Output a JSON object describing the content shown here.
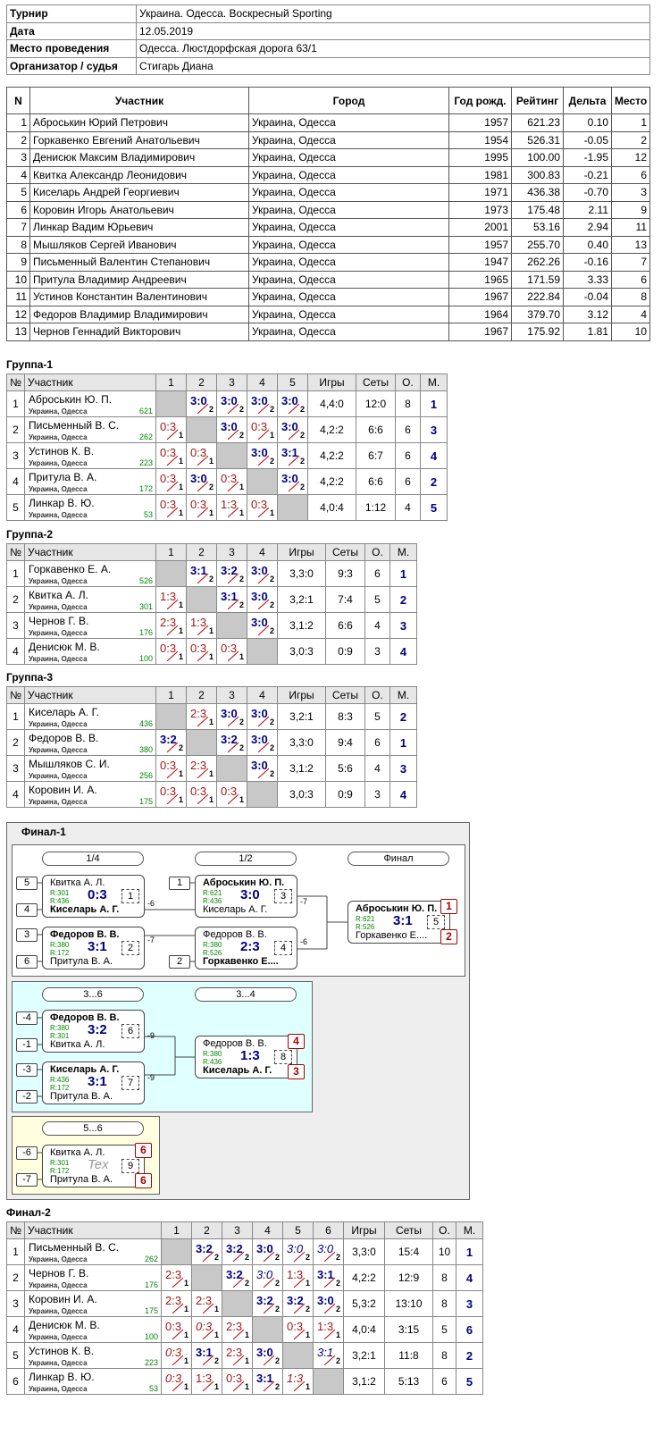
{
  "info": {
    "rows": [
      [
        "Турнир",
        "Украина. Одесса. Воскресный Sporting"
      ],
      [
        "Дата",
        "12.05.2019"
      ],
      [
        "Место проведения",
        "Одесса. Люстдорфская дорога 63/1"
      ],
      [
        "Организатор / судья",
        "Стигарь Диана"
      ]
    ]
  },
  "participants": {
    "headers": [
      "N",
      "Участник",
      "Город",
      "Год рожд.",
      "Рейтинг",
      "Дельта",
      "Место"
    ],
    "rows": [
      [
        "1",
        "Аброськин Юрий Петрович",
        "Украина, Одесса",
        "1957",
        "621.23",
        "0.10",
        "1"
      ],
      [
        "2",
        "Горкавенко Евгений Анатольевич",
        "Украина, Одесса",
        "1954",
        "526.31",
        "-0.05",
        "2"
      ],
      [
        "3",
        "Денисюк Максим Владимирович",
        "Украина, Одесса",
        "1995",
        "100.00",
        "-1.95",
        "12"
      ],
      [
        "4",
        "Квитка Александр Леонидович",
        "Украина, Одесса",
        "1981",
        "300.83",
        "-0.21",
        "6"
      ],
      [
        "5",
        "Киселарь Андрей Георгиевич",
        "Украина, Одесса",
        "1971",
        "436.38",
        "-0.70",
        "3"
      ],
      [
        "6",
        "Коровин Игорь Анатольевич",
        "Украина, Одесса",
        "1973",
        "175.48",
        "2.11",
        "9"
      ],
      [
        "7",
        "Линкар Вадим Юрьевич",
        "Украина, Одесса",
        "2001",
        "53.16",
        "2.94",
        "11"
      ],
      [
        "8",
        "Мышляков Сергей Иванович",
        "Украина, Одесса",
        "1957",
        "255.70",
        "0.40",
        "13"
      ],
      [
        "9",
        "Письменный Валентин Степанович",
        "Украина, Одесса",
        "1947",
        "262.26",
        "-0.16",
        "7"
      ],
      [
        "10",
        "Притула Владимир Андреевич",
        "Украина, Одесса",
        "1965",
        "171.59",
        "3.33",
        "6"
      ],
      [
        "11",
        "Устинов Константин Валентинович",
        "Украина, Одесса",
        "1967",
        "222.84",
        "-0.04",
        "8"
      ],
      [
        "12",
        "Федоров Владимир Владимирович",
        "Украина, Одесса",
        "1964",
        "379.70",
        "3.12",
        "4"
      ],
      [
        "13",
        "Чернов Геннадий Викторович",
        "Украина, Одесса",
        "1967",
        "175.92",
        "1.81",
        "10"
      ]
    ]
  },
  "groups": [
    {
      "title": "Группа-1",
      "headers": [
        "№",
        "Участник",
        "1",
        "2",
        "3",
        "4",
        "5",
        "Игры",
        "Сеты",
        "О.",
        "М."
      ],
      "rows": [
        {
          "no": "1",
          "name": "Аброськин Ю. П.",
          "city": "Украина, Одесса",
          "rating": "621",
          "cells": [
            null,
            {
              "score": "3:0",
              "sub": "2"
            },
            {
              "score": "3:0",
              "sub": "2"
            },
            {
              "score": "3:0",
              "sub": "2"
            },
            {
              "score": "3:0",
              "sub": "2"
            }
          ],
          "games": "4,4:0",
          "sets": "12:0",
          "points": "8",
          "place": "1"
        },
        {
          "no": "2",
          "name": "Письменный В. С.",
          "city": "Украина, Одесса",
          "rating": "262",
          "cells": [
            {
              "score": "0:3",
              "sub": "1"
            },
            null,
            {
              "score": "3:0",
              "sub": "2"
            },
            {
              "score": "0:3",
              "sub": "1"
            },
            {
              "score": "3:0",
              "sub": "2"
            }
          ],
          "games": "4,2:2",
          "sets": "6:6",
          "points": "6",
          "place": "3"
        },
        {
          "no": "3",
          "name": "Устинов К. В.",
          "city": "Украина, Одесса",
          "rating": "223",
          "cells": [
            {
              "score": "0:3",
              "sub": "1"
            },
            {
              "score": "0:3",
              "sub": "1"
            },
            null,
            {
              "score": "3:0",
              "sub": "2"
            },
            {
              "score": "3:1",
              "sub": "2"
            }
          ],
          "games": "4,2:2",
          "sets": "6:7",
          "points": "6",
          "place": "4"
        },
        {
          "no": "4",
          "name": "Притула В. А.",
          "city": "Украина, Одесса",
          "rating": "172",
          "cells": [
            {
              "score": "0:3",
              "sub": "1"
            },
            {
              "score": "3:0",
              "sub": "2"
            },
            {
              "score": "0:3",
              "sub": "1"
            },
            null,
            {
              "score": "3:0",
              "sub": "2"
            }
          ],
          "games": "4,2:2",
          "sets": "6:6",
          "points": "6",
          "place": "2"
        },
        {
          "no": "5",
          "name": "Линкар В. Ю.",
          "city": "Украина, Одесса",
          "rating": "53",
          "cells": [
            {
              "score": "0:3",
              "sub": "1"
            },
            {
              "score": "0:3",
              "sub": "1"
            },
            {
              "score": "1:3",
              "sub": "1"
            },
            {
              "score": "0:3",
              "sub": "1"
            },
            null
          ],
          "games": "4,0:4",
          "sets": "1:12",
          "points": "4",
          "place": "5"
        }
      ]
    },
    {
      "title": "Группа-2",
      "headers": [
        "№",
        "Участник",
        "1",
        "2",
        "3",
        "4",
        "Игры",
        "Сеты",
        "О.",
        "М."
      ],
      "rows": [
        {
          "no": "1",
          "name": "Горкавенко Е. А.",
          "city": "Украина, Одесса",
          "rating": "526",
          "cells": [
            null,
            {
              "score": "3:1",
              "sub": "2"
            },
            {
              "score": "3:2",
              "sub": "2"
            },
            {
              "score": "3:0",
              "sub": "2"
            }
          ],
          "games": "3,3:0",
          "sets": "9:3",
          "points": "6",
          "place": "1"
        },
        {
          "no": "2",
          "name": "Квитка А. Л.",
          "city": "Украина, Одесса",
          "rating": "301",
          "cells": [
            {
              "score": "1:3",
              "sub": "1"
            },
            null,
            {
              "score": "3:1",
              "sub": "2"
            },
            {
              "score": "3:0",
              "sub": "2"
            }
          ],
          "games": "3,2:1",
          "sets": "7:4",
          "points": "5",
          "place": "2"
        },
        {
          "no": "3",
          "name": "Чернов Г. В.",
          "city": "Украина, Одесса",
          "rating": "176",
          "cells": [
            {
              "score": "2:3",
              "sub": "1"
            },
            {
              "score": "1:3",
              "sub": "1"
            },
            null,
            {
              "score": "3:0",
              "sub": "2"
            }
          ],
          "games": "3,1:2",
          "sets": "6:6",
          "points": "4",
          "place": "3"
        },
        {
          "no": "4",
          "name": "Денисюк М. В.",
          "city": "Украина, Одесса",
          "rating": "100",
          "cells": [
            {
              "score": "0:3",
              "sub": "1"
            },
            {
              "score": "0:3",
              "sub": "1"
            },
            {
              "score": "0:3",
              "sub": "1"
            },
            null
          ],
          "games": "3,0:3",
          "sets": "0:9",
          "points": "3",
          "place": "4"
        }
      ]
    },
    {
      "title": "Группа-3",
      "headers": [
        "№",
        "Участник",
        "1",
        "2",
        "3",
        "4",
        "Игры",
        "Сеты",
        "О.",
        "М."
      ],
      "rows": [
        {
          "no": "1",
          "name": "Киселарь А. Г.",
          "city": "Украина, Одесса",
          "rating": "436",
          "cells": [
            null,
            {
              "score": "2:3",
              "sub": "1"
            },
            {
              "score": "3:0",
              "sub": "2"
            },
            {
              "score": "3:0",
              "sub": "2"
            }
          ],
          "games": "3,2:1",
          "sets": "8:3",
          "points": "5",
          "place": "2"
        },
        {
          "no": "2",
          "name": "Федоров В. В.",
          "city": "Украина, Одесса",
          "rating": "380",
          "cells": [
            {
              "score": "3:2",
              "sub": "2"
            },
            null,
            {
              "score": "3:2",
              "sub": "2"
            },
            {
              "score": "3:0",
              "sub": "2"
            }
          ],
          "games": "3,3:0",
          "sets": "9:4",
          "points": "6",
          "place": "1"
        },
        {
          "no": "3",
          "name": "Мышляков С. И.",
          "city": "Украина, Одесса",
          "rating": "256",
          "cells": [
            {
              "score": "0:3",
              "sub": "1"
            },
            {
              "score": "2:3",
              "sub": "1"
            },
            null,
            {
              "score": "3:0",
              "sub": "2"
            }
          ],
          "games": "3,1:2",
          "sets": "5:6",
          "points": "4",
          "place": "3"
        },
        {
          "no": "4",
          "name": "Коровин И. А.",
          "city": "Украина, Одесса",
          "rating": "175",
          "cells": [
            {
              "score": "0:3",
              "sub": "1"
            },
            {
              "score": "0:3",
              "sub": "1"
            },
            {
              "score": "0:3",
              "sub": "1"
            },
            null
          ],
          "games": "3,0:3",
          "sets": "0:9",
          "points": "3",
          "place": "4"
        }
      ]
    }
  ],
  "final1": {
    "title": "Финал-1",
    "stages": [
      "1/4",
      "1/2",
      "Финал",
      "3...6",
      "3...4",
      "5...6"
    ],
    "matches": [
      {
        "seeds": [
          "5",
          "4"
        ],
        "p1": "Квитка А. Л.",
        "r1": "R:301",
        "p2": "Киселарь А. Г.",
        "r2": "R:436",
        "score": "0:3",
        "no": "1",
        "next": "-6",
        "winner": 2
      },
      {
        "seeds": [
          "3",
          "6"
        ],
        "p1": "Федоров В. В.",
        "r1": "R:380",
        "p2": "Притула В. А.",
        "r2": "R:172",
        "score": "3:1",
        "no": "2",
        "next": "-7",
        "winner": 1
      },
      {
        "seeds": [
          "1",
          null
        ],
        "p1": "Аброськин Ю. П.",
        "r1": "R:621",
        "p2": "Киселарь А. Г.",
        "r2": "R:436",
        "score": "3:0",
        "no": "3",
        "next": "-7",
        "winner": 1
      },
      {
        "seeds": [
          null,
          "2"
        ],
        "p1": "Федоров В. В.",
        "r1": "R:380",
        "p2": "Горкавенко Е....",
        "r2": "R:526",
        "score": "2:3",
        "no": "4",
        "next": "-6",
        "winner": 2
      },
      {
        "p1": "Аброськин Ю. П.",
        "r1": "R:621",
        "p2": "Горкавенко Е....",
        "r2": "R:526",
        "score": "3:1",
        "no": "5",
        "places": [
          "1",
          "2"
        ],
        "winner": 1
      },
      {
        "seeds": [
          "-4",
          "-1"
        ],
        "p1": "Федоров В. В.",
        "r1": "R:380",
        "p2": "Квитка А. Л.",
        "r2": "R:301",
        "score": "3:2",
        "no": "6",
        "next": "-9",
        "winner": 1
      },
      {
        "seeds": [
          "-3",
          "-2"
        ],
        "p1": "Киселарь А. Г.",
        "r1": "R:436",
        "p2": "Притула В. А.",
        "r2": "R:172",
        "score": "3:1",
        "no": "7",
        "next": "-9",
        "winner": 1
      },
      {
        "p1": "Федоров В. В.",
        "r1": "R:380",
        "p2": "Киселарь А. Г.",
        "r2": "R:436",
        "score": "1:3",
        "no": "8",
        "places": [
          "4",
          "3"
        ],
        "winner": 2
      },
      {
        "seeds": [
          "-6",
          "-7"
        ],
        "p1": "Квитка А. Л.",
        "r1": "R:301",
        "p2": "Притула В. А.",
        "r2": "R:172",
        "score": "Tex",
        "no": "9",
        "places": [
          "6",
          "6"
        ],
        "winner": null
      }
    ]
  },
  "final2": {
    "title": "Финал-2",
    "headers": [
      "№",
      "Участник",
      "1",
      "2",
      "3",
      "4",
      "5",
      "6",
      "Игры",
      "Сеты",
      "О.",
      "М."
    ],
    "rows": [
      {
        "no": "1",
        "name": "Письменный В. С.",
        "city": "Украина, Одесса",
        "rating": "262",
        "cells": [
          null,
          {
            "score": "3:2",
            "sub": "2"
          },
          {
            "score": "3:2",
            "sub": "2"
          },
          {
            "score": "3:0",
            "sub": "2"
          },
          {
            "score": "3:0",
            "sub": "2",
            "italic": true
          },
          {
            "score": "3:0",
            "sub": "2",
            "italic": true
          }
        ],
        "games": "3,3:0",
        "sets": "15:4",
        "points": "10",
        "place": "1"
      },
      {
        "no": "2",
        "name": "Чернов Г. В.",
        "city": "Украина, Одесса",
        "rating": "176",
        "cells": [
          {
            "score": "2:3",
            "sub": "1"
          },
          null,
          {
            "score": "3:2",
            "sub": "2"
          },
          {
            "score": "3:0",
            "sub": "2",
            "italic": true
          },
          {
            "score": "1:3",
            "sub": "1"
          },
          {
            "score": "3:1",
            "sub": "2"
          }
        ],
        "games": "4,2:2",
        "sets": "12:9",
        "points": "8",
        "place": "4"
      },
      {
        "no": "3",
        "name": "Коровин И. А.",
        "city": "Украина, Одесса",
        "rating": "175",
        "cells": [
          {
            "score": "2:3",
            "sub": "1"
          },
          {
            "score": "2:3",
            "sub": "1"
          },
          null,
          {
            "score": "3:2",
            "sub": "2"
          },
          {
            "score": "3:2",
            "sub": "2"
          },
          {
            "score": "3:0",
            "sub": "2"
          }
        ],
        "games": "5,3:2",
        "sets": "13:10",
        "points": "8",
        "place": "3"
      },
      {
        "no": "4",
        "name": "Денисюк М. В.",
        "city": "Украина, Одесса",
        "rating": "100",
        "cells": [
          {
            "score": "0:3",
            "sub": "1"
          },
          {
            "score": "0:3",
            "sub": "1",
            "italic": true
          },
          {
            "score": "2:3",
            "sub": "1"
          },
          null,
          {
            "score": "0:3",
            "sub": "1"
          },
          {
            "score": "1:3",
            "sub": "1"
          }
        ],
        "games": "4,0:4",
        "sets": "3:15",
        "points": "5",
        "place": "6"
      },
      {
        "no": "5",
        "name": "Устинов К. В.",
        "city": "Украина, Одесса",
        "rating": "223",
        "cells": [
          {
            "score": "0:3",
            "sub": "1",
            "italic": true
          },
          {
            "score": "3:1",
            "sub": "2"
          },
          {
            "score": "2:3",
            "sub": "1"
          },
          {
            "score": "3:0",
            "sub": "2"
          },
          null,
          {
            "score": "3:1",
            "sub": "2",
            "italic": true
          }
        ],
        "games": "3,2:1",
        "sets": "11:8",
        "points": "8",
        "place": "2"
      },
      {
        "no": "6",
        "name": "Линкар В. Ю.",
        "city": "Украина, Одесса",
        "rating": "53",
        "cells": [
          {
            "score": "0:3",
            "sub": "1",
            "italic": true
          },
          {
            "score": "1:3",
            "sub": "1"
          },
          {
            "score": "0:3",
            "sub": "1"
          },
          {
            "score": "3:1",
            "sub": "2"
          },
          {
            "score": "1:3",
            "sub": "1",
            "italic": true
          },
          null
        ],
        "games": "3,1:2",
        "sets": "5:13",
        "points": "6",
        "place": "5"
      }
    ]
  }
}
